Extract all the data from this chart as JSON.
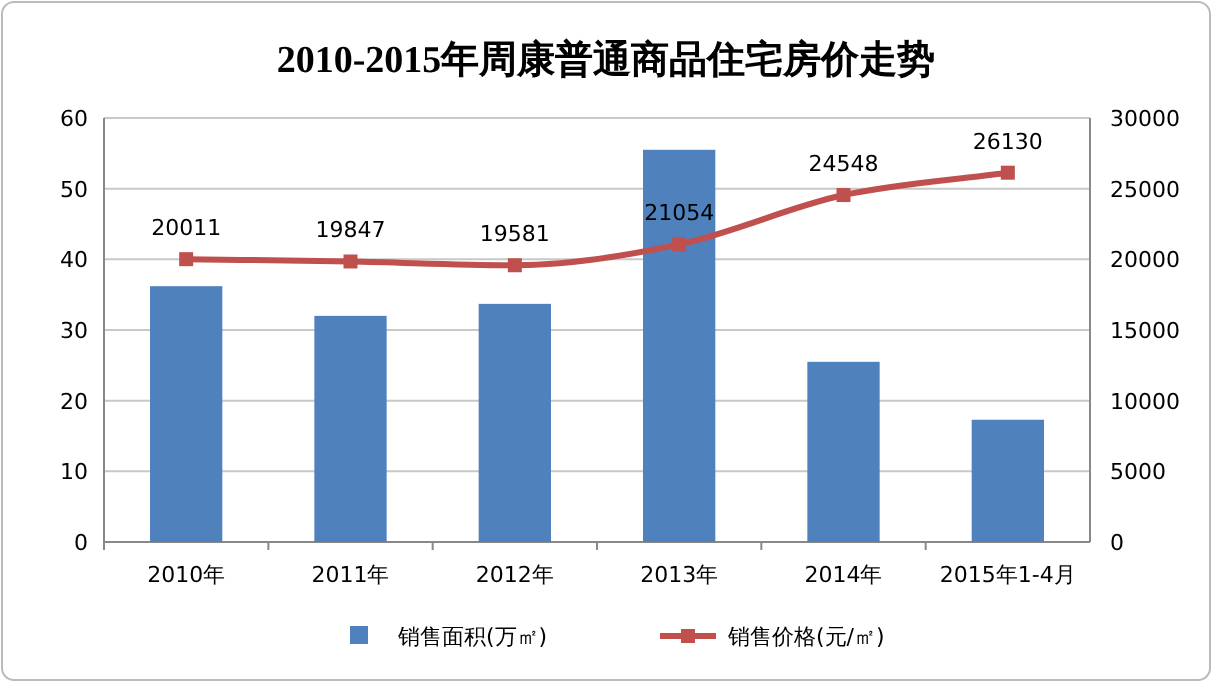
{
  "chart_data": {
    "type": "bar",
    "title": "2010-2015年周康普通商品住宅房价走势",
    "categories": [
      "2010年",
      "2011年",
      "2012年",
      "2013年",
      "2014年",
      "2015年1-4月"
    ],
    "series": [
      {
        "name": "销售面积(万㎡)",
        "color": "#4f81bd",
        "values": [
          36.2,
          32.0,
          33.7,
          55.5,
          25.5,
          17.3
        ]
      },
      {
        "name": "销售价格(元/㎡)",
        "type": "line",
        "axis": "y2",
        "color": "#c0504d",
        "marker": "square",
        "values": [
          20011,
          19847,
          19581,
          21054,
          24548,
          26130
        ],
        "value_labels": [
          "20011",
          "19847",
          "19581",
          "21054",
          "24548",
          "26130"
        ]
      }
    ],
    "ylim": [
      0,
      60
    ],
    "yticks": [
      0,
      10,
      20,
      30,
      40,
      50,
      60
    ],
    "y2lim": [
      0,
      30000
    ],
    "y2ticks": [
      0,
      5000,
      10000,
      15000,
      20000,
      25000,
      30000
    ],
    "grid": "y",
    "legend": "bottom"
  }
}
